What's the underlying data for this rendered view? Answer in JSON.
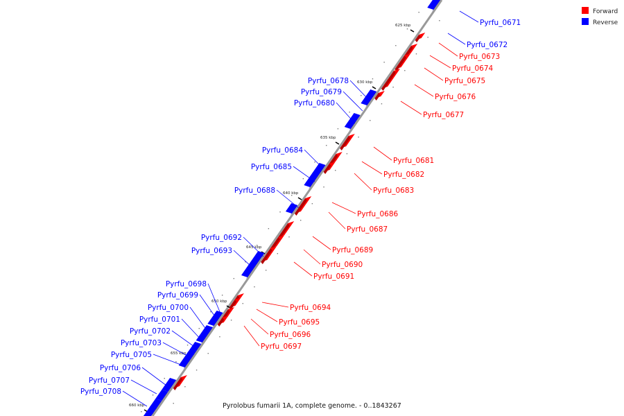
{
  "colors": {
    "forward": "#ff0000",
    "forward_dark": "#b30000",
    "reverse": "#0000ff",
    "reverse_dark": "#0000a8",
    "backbone": "#999999"
  },
  "legend": {
    "forward": "Forward",
    "reverse": "Reverse"
  },
  "caption": "Pyrolobus fumarii 1A, complete genome. - 0..1843267",
  "kbp_ticks": [
    "625 kbp",
    "630 kbp",
    "635 kbp",
    "640 kbp",
    "645 kbp",
    "650 kbp",
    "655 kbp",
    "660 kbp"
  ],
  "genes_reverse": [
    "Pyrfu_0671",
    "Pyrfu_0672",
    "Pyrfu_0678",
    "Pyrfu_0679",
    "Pyrfu_0680",
    "Pyrfu_0684",
    "Pyrfu_0685",
    "Pyrfu_0688",
    "Pyrfu_0692",
    "Pyrfu_0693",
    "Pyrfu_0698",
    "Pyrfu_0699",
    "Pyrfu_0700",
    "Pyrfu_0701",
    "Pyrfu_0702",
    "Pyrfu_0703",
    "Pyrfu_0705",
    "Pyrfu_0706",
    "Pyrfu_0707",
    "Pyrfu_0708"
  ],
  "genes_forward": [
    "Pyrfu_0673",
    "Pyrfu_0674",
    "Pyrfu_0675",
    "Pyrfu_0676",
    "Pyrfu_0677",
    "Pyrfu_0681",
    "Pyrfu_0682",
    "Pyrfu_0683",
    "Pyrfu_0686",
    "Pyrfu_0687",
    "Pyrfu_0689",
    "Pyrfu_0690",
    "Pyrfu_0691",
    "Pyrfu_0694",
    "Pyrfu_0695",
    "Pyrfu_0696",
    "Pyrfu_0697"
  ]
}
